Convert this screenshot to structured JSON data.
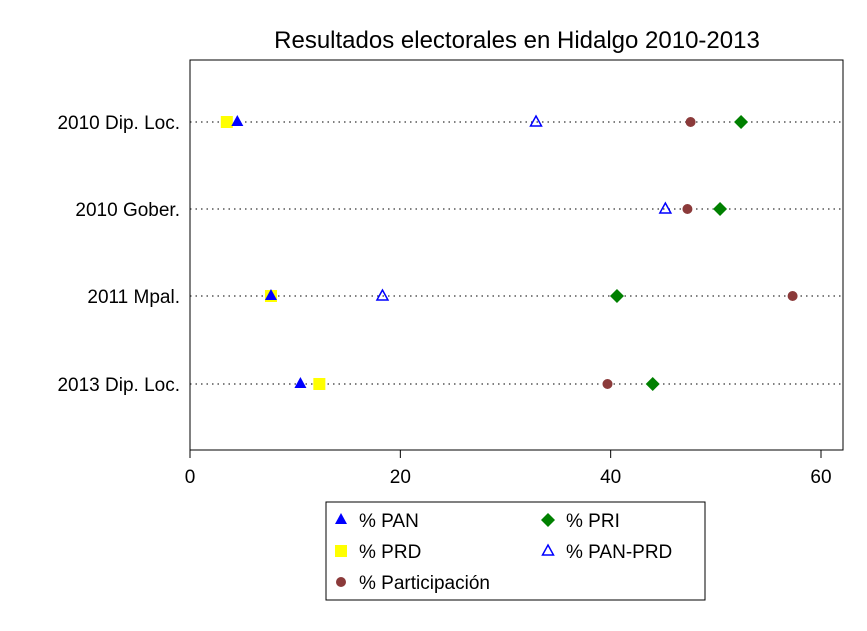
{
  "chart_data": {
    "type": "scatter",
    "title": "Resultados electorales en Hidalgo 2010-2013",
    "xlabel": "",
    "ylabel": "",
    "xlim": [
      0,
      62
    ],
    "xticks": [
      0,
      20,
      40,
      60
    ],
    "grid": "dotted horizontal lines per category",
    "legend_position": "bottom",
    "categories": [
      "2010 Dip. Loc.",
      "2010 Gober.",
      "2011 Mpal.",
      "2013 Dip. Loc."
    ],
    "series": [
      {
        "name": "% PAN",
        "marker": "triangle-filled",
        "color": "#0000ff",
        "values": [
          4.5,
          null,
          7.7,
          10.5
        ]
      },
      {
        "name": "% PRI",
        "marker": "diamond",
        "color": "#008000",
        "values": [
          52.4,
          50.4,
          40.6,
          44.0
        ]
      },
      {
        "name": "% PRD",
        "marker": "square",
        "color": "#ffff00",
        "values": [
          3.5,
          null,
          7.7,
          12.3
        ]
      },
      {
        "name": "% PAN-PRD",
        "marker": "triangle-hollow",
        "color": "#0000ff",
        "values": [
          32.9,
          45.2,
          18.3,
          null
        ]
      },
      {
        "name": "% Participación",
        "marker": "circle",
        "color": "#8b3a3a",
        "values": [
          47.6,
          47.3,
          57.3,
          39.7
        ]
      }
    ]
  }
}
